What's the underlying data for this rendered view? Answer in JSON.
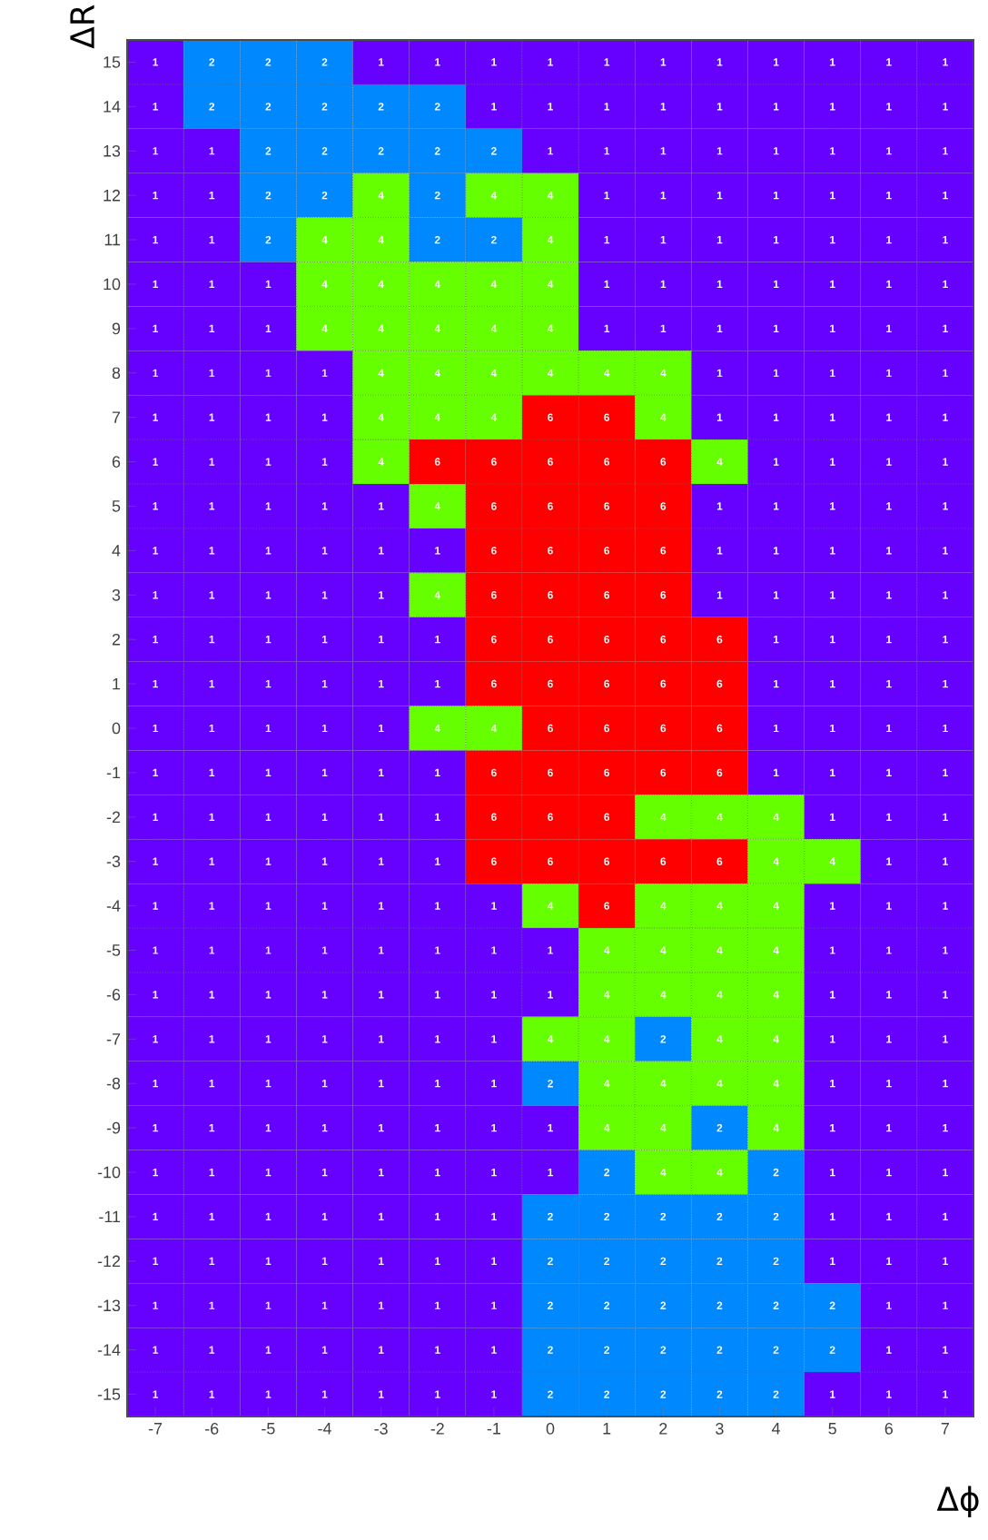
{
  "chart_data": {
    "type": "heatmap",
    "xlabel": "Δϕ",
    "ylabel": "ΔR",
    "data_labels": true,
    "grid": true,
    "categories": [
      "-7",
      "-6",
      "-5",
      "-4",
      "-3",
      "-2",
      "-1",
      "0",
      "1",
      "2",
      "3",
      "4",
      "5",
      "6",
      "7"
    ],
    "y_categories": [
      "15",
      "14",
      "13",
      "12",
      "11",
      "10",
      "9",
      "8",
      "7",
      "6",
      "5",
      "4",
      "3",
      "2",
      "1",
      "0",
      "-1",
      "-2",
      "-3",
      "-4",
      "-5",
      "-6",
      "-7",
      "-8",
      "-9",
      "-10",
      "-11",
      "-12",
      "-13",
      "-14",
      "-15"
    ],
    "cells": [
      [
        1,
        2,
        2,
        2,
        1,
        1,
        1,
        1,
        1,
        1,
        1,
        1,
        1,
        1,
        1
      ],
      [
        1,
        2,
        2,
        2,
        2,
        2,
        1,
        1,
        1,
        1,
        1,
        1,
        1,
        1,
        1
      ],
      [
        1,
        1,
        2,
        2,
        2,
        2,
        2,
        1,
        1,
        1,
        1,
        1,
        1,
        1,
        1
      ],
      [
        1,
        1,
        2,
        2,
        4,
        2,
        4,
        4,
        1,
        1,
        1,
        1,
        1,
        1,
        1
      ],
      [
        1,
        1,
        2,
        4,
        4,
        2,
        2,
        4,
        1,
        1,
        1,
        1,
        1,
        1,
        1
      ],
      [
        1,
        1,
        1,
        4,
        4,
        4,
        4,
        4,
        1,
        1,
        1,
        1,
        1,
        1,
        1
      ],
      [
        1,
        1,
        1,
        4,
        4,
        4,
        4,
        4,
        1,
        1,
        1,
        1,
        1,
        1,
        1
      ],
      [
        1,
        1,
        1,
        1,
        4,
        4,
        4,
        4,
        4,
        4,
        1,
        1,
        1,
        1,
        1
      ],
      [
        1,
        1,
        1,
        1,
        4,
        4,
        4,
        6,
        6,
        4,
        1,
        1,
        1,
        1,
        1
      ],
      [
        1,
        1,
        1,
        1,
        4,
        6,
        6,
        6,
        6,
        6,
        4,
        1,
        1,
        1,
        1
      ],
      [
        1,
        1,
        1,
        1,
        1,
        4,
        6,
        6,
        6,
        6,
        1,
        1,
        1,
        1,
        1
      ],
      [
        1,
        1,
        1,
        1,
        1,
        1,
        6,
        6,
        6,
        6,
        1,
        1,
        1,
        1,
        1
      ],
      [
        1,
        1,
        1,
        1,
        1,
        4,
        6,
        6,
        6,
        6,
        1,
        1,
        1,
        1,
        1
      ],
      [
        1,
        1,
        1,
        1,
        1,
        1,
        6,
        6,
        6,
        6,
        6,
        1,
        1,
        1,
        1
      ],
      [
        1,
        1,
        1,
        1,
        1,
        1,
        6,
        6,
        6,
        6,
        6,
        1,
        1,
        1,
        1
      ],
      [
        1,
        1,
        1,
        1,
        1,
        4,
        4,
        6,
        6,
        6,
        6,
        1,
        1,
        1,
        1
      ],
      [
        1,
        1,
        1,
        1,
        1,
        1,
        6,
        6,
        6,
        6,
        6,
        1,
        1,
        1,
        1
      ],
      [
        1,
        1,
        1,
        1,
        1,
        1,
        6,
        6,
        6,
        4,
        4,
        4,
        1,
        1,
        1
      ],
      [
        1,
        1,
        1,
        1,
        1,
        1,
        6,
        6,
        6,
        6,
        6,
        4,
        4,
        1,
        1
      ],
      [
        1,
        1,
        1,
        1,
        1,
        1,
        1,
        4,
        6,
        4,
        4,
        4,
        1,
        1,
        1
      ],
      [
        1,
        1,
        1,
        1,
        1,
        1,
        1,
        1,
        4,
        4,
        4,
        4,
        1,
        1,
        1
      ],
      [
        1,
        1,
        1,
        1,
        1,
        1,
        1,
        1,
        4,
        4,
        4,
        4,
        1,
        1,
        1
      ],
      [
        1,
        1,
        1,
        1,
        1,
        1,
        1,
        4,
        4,
        2,
        4,
        4,
        1,
        1,
        1
      ],
      [
        1,
        1,
        1,
        1,
        1,
        1,
        1,
        2,
        4,
        4,
        4,
        4,
        1,
        1,
        1
      ],
      [
        1,
        1,
        1,
        1,
        1,
        1,
        1,
        1,
        4,
        4,
        2,
        4,
        1,
        1,
        1
      ],
      [
        1,
        1,
        1,
        1,
        1,
        1,
        1,
        1,
        2,
        4,
        4,
        2,
        1,
        1,
        1
      ],
      [
        1,
        1,
        1,
        1,
        1,
        1,
        1,
        2,
        2,
        2,
        2,
        2,
        1,
        1,
        1
      ],
      [
        1,
        1,
        1,
        1,
        1,
        1,
        1,
        2,
        2,
        2,
        2,
        2,
        1,
        1,
        1
      ],
      [
        1,
        1,
        1,
        1,
        1,
        1,
        1,
        2,
        2,
        2,
        2,
        2,
        2,
        1,
        1
      ],
      [
        1,
        1,
        1,
        1,
        1,
        1,
        1,
        2,
        2,
        2,
        2,
        2,
        2,
        1,
        1
      ],
      [
        1,
        1,
        1,
        1,
        1,
        1,
        1,
        2,
        2,
        2,
        2,
        2,
        1,
        1,
        1
      ]
    ]
  }
}
